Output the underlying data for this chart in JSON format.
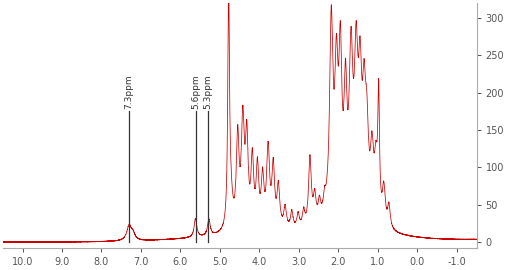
{
  "xlim": [
    10.5,
    -1.5
  ],
  "ylim": [
    -8,
    320
  ],
  "yticks": [
    0,
    50,
    100,
    150,
    200,
    250,
    300
  ],
  "xticks": [
    10.0,
    9.0,
    8.0,
    7.0,
    6.0,
    5.0,
    4.0,
    3.0,
    2.0,
    1.0,
    0.0,
    -1.0
  ],
  "line_color": "#cc0000",
  "background_color": "#ffffff",
  "marker_lines": [
    {
      "ppm": 7.3,
      "label": "7.3ppm"
    },
    {
      "ppm": 5.6,
      "label": "5.6ppm"
    },
    {
      "ppm": 5.3,
      "label": "5.3ppm"
    }
  ]
}
